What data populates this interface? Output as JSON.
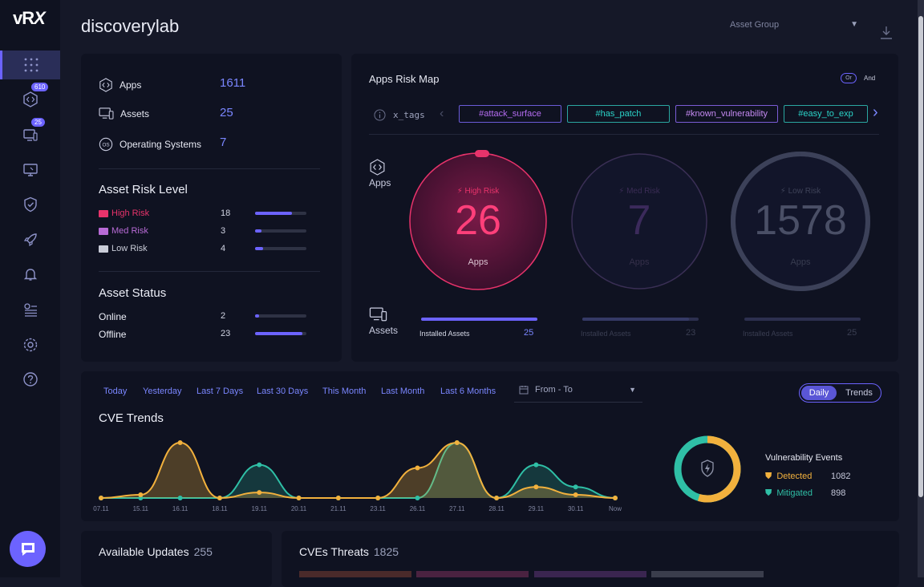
{
  "app": {
    "logo_text": "vR",
    "logo_x": "X",
    "page_title": "discoverylab",
    "asset_group_placeholder": "Asset Group"
  },
  "sidebar": {
    "items": [
      {
        "name": "dashboard-icon",
        "active": true
      },
      {
        "name": "apps-icon",
        "badge": "610"
      },
      {
        "name": "assets-icon",
        "badge": "25"
      },
      {
        "name": "monitor-icon"
      },
      {
        "name": "shield-icon"
      },
      {
        "name": "rocket-icon"
      },
      {
        "name": "bell-icon"
      },
      {
        "name": "reports-icon"
      },
      {
        "name": "settings-icon"
      },
      {
        "name": "help-icon"
      }
    ]
  },
  "summary": {
    "apps_label": "Apps",
    "apps_value": "1611",
    "assets_label": "Assets",
    "assets_value": "25",
    "os_label": "Operating Systems",
    "os_value": "7",
    "risk_title": "Asset Risk Level",
    "risk": [
      {
        "label": "High Risk",
        "count": "18",
        "fill": 0.72,
        "color": "#e8336b"
      },
      {
        "label": "Med Risk",
        "count": "3",
        "fill": 0.12,
        "color": "#b86bd6"
      },
      {
        "label": "Low Risk",
        "count": "4",
        "fill": 0.16,
        "color": "#c9ccd8"
      }
    ],
    "status_title": "Asset Status",
    "status": [
      {
        "label": "Online",
        "count": "2",
        "fill": 0.08
      },
      {
        "label": "Offline",
        "count": "23",
        "fill": 0.92
      }
    ]
  },
  "risk_map": {
    "title": "Apps Risk Map",
    "toggle_or": "Or",
    "toggle_and": "And",
    "tags_label": "x_tags",
    "tags": [
      {
        "label": "#attack_surface",
        "color": "#b46cf0",
        "border": "#6b5bd8"
      },
      {
        "label": "#has_patch",
        "color": "#2bd3c8",
        "border": "#2aa7a1"
      },
      {
        "label": "#known_vulnerability",
        "color": "#c58af2",
        "border": "#7b5cd6"
      },
      {
        "label": "#easy_to_exp",
        "color": "#2bd3c8",
        "border": "#2aa7a1"
      }
    ],
    "apps_label": "Apps",
    "assets_label": "Assets",
    "circles": [
      {
        "risk": "High Risk",
        "value": "26",
        "unit": "Apps",
        "installed_label": "Installed Assets",
        "installed_value": "25",
        "installed_fill": 1.0
      },
      {
        "risk": "Med Risk",
        "value": "7",
        "unit": "Apps",
        "installed_label": "Installed Assets",
        "installed_value": "23",
        "installed_fill": 0.92
      },
      {
        "risk": "Low Risk",
        "value": "1578",
        "unit": "Apps",
        "installed_label": "Installed Assets",
        "installed_value": "25",
        "installed_fill": 1.0
      }
    ]
  },
  "trends": {
    "ranges": [
      "Today",
      "Yesterday",
      "Last 7 Days",
      "Last 30 Days",
      "This Month",
      "Last Month",
      "Last 6 Months"
    ],
    "date_range_placeholder": "From - To",
    "view_daily": "Daily",
    "view_trends": "Trends",
    "title": "CVE Trends",
    "legend_title": "Vulnerability Events",
    "detected_label": "Detected",
    "detected_value": "1082",
    "mitigated_label": "Mitigated",
    "mitigated_value": "898",
    "colors": {
      "detected": "#f2b13d",
      "mitigated": "#2fbfa6"
    }
  },
  "chart_data": {
    "type": "area",
    "categories": [
      "07.11",
      "15.11",
      "16.11",
      "18.11",
      "19.11",
      "20.11",
      "21.11",
      "23.11",
      "26.11",
      "27.11",
      "28.11",
      "29.11",
      "30.11",
      "Now"
    ],
    "series": [
      {
        "name": "Detected",
        "values": [
          0,
          4,
          70,
          0,
          7,
          0,
          0,
          0,
          38,
          70,
          0,
          14,
          4,
          0
        ]
      },
      {
        "name": "Mitigated",
        "values": [
          0,
          0,
          0,
          0,
          42,
          0,
          0,
          0,
          0,
          70,
          0,
          42,
          14,
          0
        ]
      }
    ],
    "donut": {
      "detected": 1082,
      "mitigated": 898
    }
  },
  "bottom": {
    "updates_label": "Available Updates",
    "updates_value": "255",
    "threats_label": "CVEs Threats",
    "threats_value": "1825"
  }
}
